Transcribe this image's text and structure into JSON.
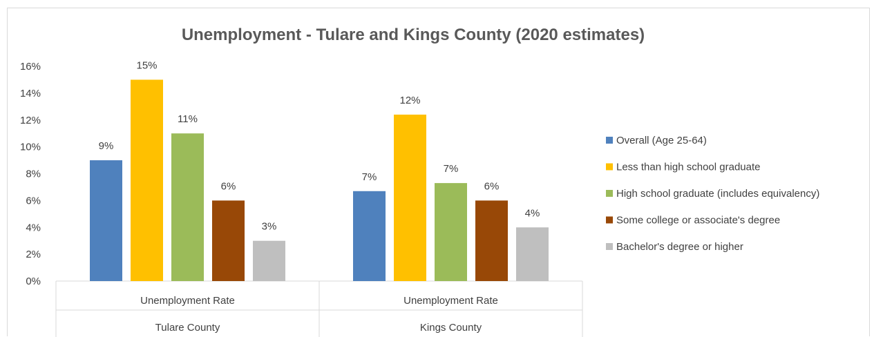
{
  "chart_data": {
    "type": "bar",
    "title": "Unemployment - Tulare and Kings County (2020 estimates)",
    "xlabel": "",
    "ylabel": "",
    "ylim": [
      0,
      16
    ],
    "y_ticks": [
      "0%",
      "2%",
      "4%",
      "6%",
      "8%",
      "10%",
      "12%",
      "14%",
      "16%"
    ],
    "y_tick_values": [
      0,
      2,
      4,
      6,
      8,
      10,
      12,
      14,
      16
    ],
    "categories": [
      {
        "sub": "Unemployment Rate",
        "group": "Tulare County"
      },
      {
        "sub": "Unemployment Rate",
        "group": "Kings County"
      }
    ],
    "series": [
      {
        "name": "Overall (Age 25-64)",
        "color": "#4F81BD",
        "values": [
          9,
          6.7
        ],
        "labels": [
          "9%",
          "7%"
        ]
      },
      {
        "name": "Less than high school graduate",
        "color": "#FFC000",
        "values": [
          15,
          12.4
        ],
        "labels": [
          "15%",
          "12%"
        ]
      },
      {
        "name": "High school graduate (includes equivalency)",
        "color": "#9BBB59",
        "values": [
          11,
          7.3
        ],
        "labels": [
          "11%",
          "7%"
        ]
      },
      {
        "name": "Some college or associate's degree",
        "color": "#984807",
        "values": [
          6,
          6
        ],
        "labels": [
          "6%",
          "6%"
        ]
      },
      {
        "name": "Bachelor's degree or higher",
        "color": "#BFBFBF",
        "values": [
          3,
          4
        ],
        "labels": [
          "3%",
          "4%"
        ]
      }
    ],
    "legend_position": "right",
    "grid": false
  }
}
